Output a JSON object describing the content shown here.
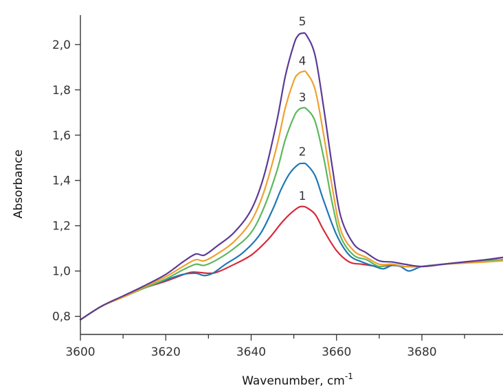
{
  "chart_data": {
    "type": "line",
    "title": "",
    "xlabel": "Wavenumber, cm",
    "xlabel_superscript": "-1",
    "ylabel": "Absorbance",
    "xlim": [
      3600,
      3699
    ],
    "ylim": [
      0.72,
      2.13
    ],
    "x_ticks": [
      3600,
      3620,
      3640,
      3660,
      3680
    ],
    "x_tick_labels": [
      "3600",
      "3620",
      "3640",
      "3660",
      "3680"
    ],
    "x_minor_ticks": [
      3610,
      3630,
      3650,
      3670,
      3690
    ],
    "y_ticks": [
      0.8,
      1.0,
      1.2,
      1.4,
      1.6,
      1.8,
      2.0
    ],
    "y_tick_labels": [
      "0,8",
      "1,0",
      "1,2",
      "1,4",
      "1,6",
      "1,8",
      "2,0"
    ],
    "grid": false,
    "legend": "none",
    "series": [
      {
        "label": "1",
        "color": "#d62a3a",
        "label_at": [
          3652,
          1.315
        ],
        "x": [
          3600,
          3605,
          3610,
          3615,
          3620,
          3625,
          3627,
          3630,
          3632,
          3635,
          3640,
          3644,
          3647,
          3649,
          3651,
          3652,
          3653,
          3655,
          3657,
          3660,
          3663,
          3666,
          3670,
          3673,
          3676,
          3680,
          3685,
          3690,
          3695,
          3699
        ],
        "y": [
          0.785,
          0.845,
          0.885,
          0.925,
          0.955,
          0.99,
          0.995,
          0.99,
          0.995,
          1.02,
          1.07,
          1.14,
          1.21,
          1.25,
          1.28,
          1.285,
          1.28,
          1.25,
          1.18,
          1.09,
          1.04,
          1.03,
          1.02,
          1.025,
          1.02,
          1.02,
          1.03,
          1.04,
          1.05,
          1.06
        ]
      },
      {
        "label": "2",
        "color": "#1f77b4",
        "label_at": [
          3652,
          1.51
        ],
        "x": [
          3600,
          3605,
          3610,
          3615,
          3620,
          3624,
          3627,
          3629,
          3631,
          3634,
          3638,
          3642,
          3645,
          3647,
          3649,
          3651,
          3652,
          3653,
          3655,
          3657,
          3660,
          3663,
          3666,
          3669,
          3671,
          3673,
          3675,
          3677,
          3680,
          3685,
          3690,
          3695,
          3699
        ],
        "y": [
          0.785,
          0.845,
          0.885,
          0.925,
          0.96,
          0.985,
          0.99,
          0.98,
          0.99,
          1.03,
          1.08,
          1.16,
          1.27,
          1.36,
          1.43,
          1.47,
          1.475,
          1.47,
          1.42,
          1.31,
          1.16,
          1.07,
          1.04,
          1.02,
          1.01,
          1.025,
          1.02,
          1.0,
          1.02,
          1.03,
          1.04,
          1.045,
          1.05
        ]
      },
      {
        "label": "3",
        "color": "#5cb85c",
        "label_at": [
          3652,
          1.75
        ],
        "x": [
          3600,
          3605,
          3610,
          3615,
          3620,
          3624,
          3627,
          3629,
          3632,
          3636,
          3640,
          3643,
          3646,
          3648,
          3650,
          3651,
          3652,
          3653,
          3655,
          3657,
          3659,
          3661,
          3664,
          3667,
          3670,
          3673,
          3676,
          3680,
          3685,
          3690,
          3695,
          3699
        ],
        "y": [
          0.785,
          0.845,
          0.885,
          0.925,
          0.965,
          1.005,
          1.03,
          1.025,
          1.05,
          1.1,
          1.17,
          1.28,
          1.44,
          1.58,
          1.68,
          1.71,
          1.72,
          1.715,
          1.66,
          1.5,
          1.3,
          1.15,
          1.07,
          1.05,
          1.02,
          1.03,
          1.02,
          1.02,
          1.03,
          1.04,
          1.045,
          1.05
        ]
      },
      {
        "label": "4",
        "color": "#f0a030",
        "label_at": [
          3652,
          1.91
        ],
        "x": [
          3600,
          3605,
          3610,
          3615,
          3620,
          3624,
          3627,
          3629,
          3632,
          3636,
          3640,
          3643,
          3646,
          3648,
          3650,
          3651,
          3652,
          3653,
          3655,
          3657,
          3659,
          3661,
          3664,
          3667,
          3670,
          3673,
          3676,
          3680,
          3685,
          3690,
          3695,
          3699
        ],
        "y": [
          0.785,
          0.845,
          0.885,
          0.93,
          0.975,
          1.02,
          1.05,
          1.045,
          1.075,
          1.13,
          1.22,
          1.35,
          1.55,
          1.72,
          1.84,
          1.87,
          1.88,
          1.875,
          1.8,
          1.6,
          1.37,
          1.18,
          1.09,
          1.06,
          1.03,
          1.03,
          1.02,
          1.02,
          1.03,
          1.035,
          1.04,
          1.045
        ]
      },
      {
        "label": "5",
        "color": "#5b3a96",
        "label_at": [
          3652,
          2.085
        ],
        "x": [
          3600,
          3605,
          3610,
          3615,
          3620,
          3624,
          3627,
          3629,
          3632,
          3636,
          3640,
          3643,
          3646,
          3648,
          3650,
          3651,
          3652,
          3653,
          3655,
          3657,
          3659,
          3661,
          3664,
          3667,
          3670,
          3673,
          3676,
          3680,
          3685,
          3690,
          3695,
          3699
        ],
        "y": [
          0.785,
          0.845,
          0.89,
          0.935,
          0.985,
          1.04,
          1.075,
          1.07,
          1.11,
          1.17,
          1.27,
          1.42,
          1.66,
          1.86,
          2.0,
          2.04,
          2.05,
          2.04,
          1.95,
          1.72,
          1.46,
          1.24,
          1.12,
          1.08,
          1.045,
          1.04,
          1.03,
          1.02,
          1.03,
          1.04,
          1.05,
          1.06
        ]
      }
    ]
  }
}
